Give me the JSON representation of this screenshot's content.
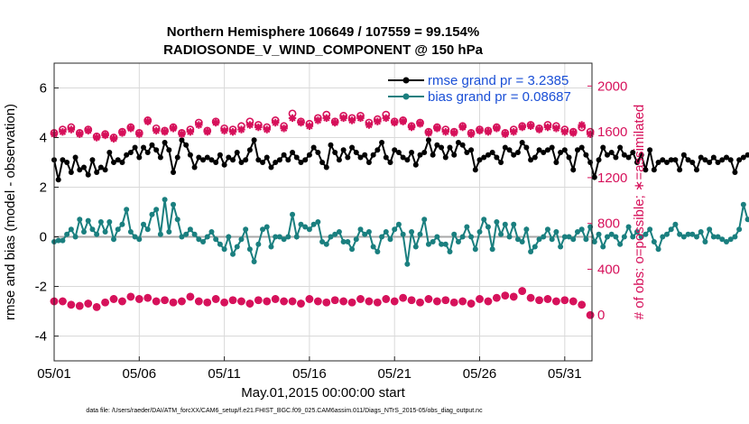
{
  "figure": {
    "title_line1": "Northern Hemisphere 106649 / 107559 = 99.154%",
    "title_line2": "RADIOSONDE_V_WIND_COMPONENT @ 150 hPa",
    "footer": "data file: /Users/raeder/DAI/ATM_forcXX/CAM6_setup/f.e21.FHIST_BGC.f09_025.CAM6assim.011/Diags_NTrS_2015-05/obs_diag_output.nc"
  },
  "chart_data": {
    "type": "line",
    "title": "Northern Hemisphere 106649 / 107559 = 99.154%  RADIOSONDE_V_WIND_COMPONENT @ 150 hPa",
    "xlabel": "May.01,2015 00:00:00 start",
    "ylabel_left": "rmse and bias (model - observation)",
    "ylabel_right": "# of obs: o=possible; ∗=assimilated",
    "xlim": [
      0,
      31.6
    ],
    "ylim_left": [
      -5,
      7
    ],
    "ylim_right": [
      -400,
      2200
    ],
    "x_tick_labels": [
      "05/01",
      "05/06",
      "05/11",
      "05/16",
      "05/21",
      "05/26",
      "05/31"
    ],
    "x_tick_values": [
      0,
      5,
      10,
      15,
      20,
      25,
      30
    ],
    "y_ticks_left": [
      -4,
      -2,
      0,
      2,
      4,
      6
    ],
    "y_ticks_right": [
      0,
      400,
      800,
      1200,
      1600,
      2000
    ],
    "grid": true,
    "zero_line": true,
    "legend_position": "top-right",
    "x_step_days": 0.25,
    "series": [
      {
        "name": "rmse grand pr = 3.2385",
        "axis": "left",
        "color": "#000000",
        "marker": "circle",
        "values": [
          3.1,
          2.3,
          3.1,
          3.0,
          2.6,
          3.2,
          2.7,
          2.8,
          2.5,
          3.1,
          2.6,
          2.8,
          2.7,
          3.4,
          3.0,
          3.1,
          3.0,
          3.3,
          3.4,
          3.6,
          3.2,
          3.6,
          3.4,
          3.7,
          3.5,
          3.2,
          3.8,
          3.5,
          2.6,
          3.2,
          3.9,
          3.7,
          3.3,
          2.8,
          3.2,
          3.1,
          3.2,
          3.1,
          3.0,
          3.3,
          2.9,
          3.2,
          3.1,
          3.4,
          3.0,
          3.1,
          3.5,
          3.9,
          3.1,
          3.0,
          3.2,
          2.8,
          3.0,
          3.1,
          3.3,
          3.1,
          3.4,
          3.2,
          3.0,
          3.1,
          3.3,
          3.6,
          3.4,
          3.0,
          2.8,
          3.7,
          3.4,
          3.1,
          3.5,
          3.2,
          3.6,
          3.4,
          3.2,
          3.3,
          3.0,
          3.3,
          3.5,
          3.8,
          3.2,
          3.0,
          3.5,
          3.4,
          3.2,
          3.1,
          3.4,
          2.9,
          3.3,
          3.4,
          3.9,
          3.3,
          3.7,
          3.6,
          3.2,
          3.6,
          3.3,
          3.8,
          3.7,
          3.4,
          3.5,
          2.7,
          3.1,
          3.2,
          3.3,
          3.4,
          3.2,
          3.0,
          3.6,
          3.5,
          3.3,
          3.4,
          3.8,
          3.6,
          3.1,
          3.2,
          3.5,
          3.4,
          3.5,
          3.6,
          3.0,
          3.4,
          3.5,
          3.2,
          2.7,
          3.5,
          3.6,
          3.3,
          3.0,
          2.4,
          3.1,
          3.6,
          3.3,
          3.4,
          3.2,
          3.6,
          3.3,
          3.2,
          3.4,
          3.0,
          3.3,
          2.7,
          3.5,
          2.7,
          3.0,
          3.1,
          3.0,
          3.1,
          3.1,
          2.7,
          3.3,
          3.1,
          3.0,
          2.7,
          3.2,
          3.1,
          3.0,
          3.2,
          3.0,
          3.1,
          3.2,
          3.1,
          2.6,
          3.1,
          3.2,
          3.3,
          3.2,
          3.3,
          3.2,
          3.1,
          3.0,
          2.4,
          2.5,
          3.0,
          3.3,
          2.5,
          3.5,
          3.0,
          2.9,
          3.3,
          2.6,
          3.2,
          3.1,
          2.8,
          2.9,
          3.3,
          2.5,
          3.0,
          3.1,
          3.0,
          2.8,
          3.2,
          3.3,
          3.2,
          3.1,
          3.3,
          2.8,
          3.3,
          3.2,
          3.1,
          3.1,
          2.6,
          2.5
        ]
      },
      {
        "name": "bias grand pr = 0.08687",
        "axis": "left",
        "color": "#1a7f7f",
        "marker": "circle",
        "values": [
          -0.2,
          -0.15,
          -0.15,
          0.1,
          0.3,
          0.0,
          0.7,
          0.2,
          0.65,
          0.3,
          0.1,
          0.6,
          0.2,
          0.6,
          -0.1,
          0.3,
          0.5,
          1.1,
          0.2,
          0.0,
          -0.1,
          0.5,
          0.3,
          0.9,
          1.1,
          0.1,
          1.5,
          0.2,
          1.3,
          0.7,
          0.0,
          0.1,
          0.3,
          0.1,
          -0.1,
          -0.2,
          0.0,
          0.2,
          -0.1,
          -0.3,
          -0.5,
          0.0,
          -0.7,
          -0.4,
          -0.1,
          0.3,
          -0.5,
          -1.0,
          -0.3,
          0.3,
          0.4,
          -0.4,
          0.0,
          0.0,
          -0.1,
          0.0,
          0.9,
          0.0,
          0.5,
          0.4,
          0.3,
          0.5,
          0.6,
          -0.2,
          -0.3,
          0.0,
          0.1,
          0.2,
          -0.2,
          -0.2,
          -0.5,
          -0.1,
          0.3,
          0.1,
          0.2,
          -0.4,
          -0.6,
          0.0,
          0.2,
          -0.1,
          0.3,
          0.5,
          0.1,
          -1.1,
          0.2,
          -0.4,
          0.1,
          0.7,
          -0.3,
          -0.2,
          0.0,
          -0.3,
          -0.3,
          -0.6,
          0.1,
          -0.2,
          0.0,
          0.4,
          0.0,
          -0.5,
          0.2,
          0.7,
          0.4,
          -0.5,
          0.6,
          0.1,
          0.5,
          0.0,
          0.5,
          -0.1,
          -0.2,
          0.3,
          -0.6,
          -0.4,
          -0.1,
          0.0,
          0.3,
          -0.1,
          0.2,
          -0.4,
          0.0,
          0.0,
          -0.1,
          0.2,
          0.3,
          -0.1,
          0.4,
          -0.2,
          0.1,
          -0.4,
          0.0,
          0.1,
          0.0,
          -0.3,
          0.0,
          0.4,
          0.0,
          0.2,
          0.0,
          0.1,
          0.3,
          -0.2,
          -0.5,
          0.0,
          0.1,
          0.3,
          0.5,
          0.1,
          0.0,
          0.1,
          0.1,
          0.0,
          0.2,
          -0.2,
          0.3,
          0.0,
          0.0,
          -0.1,
          -0.2,
          -0.1,
          0.0,
          0.3,
          1.3,
          0.7,
          0.5,
          0.8,
          0.4,
          0.6,
          -0.3,
          0.0,
          0.3,
          0.1,
          0.0,
          0.0,
          -0.1,
          0.1,
          0.0,
          -0.1,
          0.1,
          0.2,
          0.0,
          -0.1,
          0.0,
          -0.1,
          0.3,
          0.1,
          0.2,
          0.2,
          -0.3,
          0.2,
          0.0,
          0.0,
          0.1,
          0.5,
          1.3
        ]
      },
      {
        "name": "possible",
        "axis": "right",
        "color": "#d6105a",
        "marker": "o",
        "x": [
          0,
          0.5,
          1,
          1.5,
          2,
          2.5,
          3,
          3.5,
          4,
          4.5,
          5,
          5.5,
          6,
          6.5,
          7,
          7.5,
          8,
          8.5,
          9,
          9.5,
          10,
          10.5,
          11,
          11.5,
          12,
          12.5,
          13,
          13.5,
          14,
          14.5,
          15,
          15.5,
          16,
          16.5,
          17,
          17.5,
          18,
          18.5,
          19,
          19.5,
          20,
          20.5,
          21,
          21.5,
          22,
          22.5,
          23,
          23.5,
          24,
          24.5,
          25,
          25.5,
          26,
          26.5,
          27,
          27.5,
          28,
          28.5,
          29,
          29.5,
          30,
          30.5,
          31,
          31.5
        ],
        "values": [
          1590,
          1620,
          1640,
          1590,
          1620,
          1560,
          1580,
          1550,
          1600,
          1640,
          1590,
          1700,
          1630,
          1610,
          1640,
          1590,
          1620,
          1680,
          1610,
          1690,
          1630,
          1620,
          1650,
          1690,
          1660,
          1640,
          1700,
          1650,
          1760,
          1690,
          1670,
          1720,
          1750,
          1690,
          1740,
          1720,
          1740,
          1680,
          1710,
          1750,
          1690,
          1700,
          1650,
          1680,
          1600,
          1640,
          1620,
          1600,
          1650,
          1590,
          1620,
          1610,
          1640,
          1590,
          1620,
          1650,
          1660,
          1630,
          1660,
          1650,
          1620,
          1600,
          1640,
          1600
        ]
      },
      {
        "name": "assimilated",
        "axis": "right",
        "color": "#d6105a",
        "marker": "asterisk",
        "x": [
          0,
          0.5,
          1,
          1.5,
          2,
          2.5,
          3,
          3.5,
          4,
          4.5,
          5,
          5.5,
          6,
          6.5,
          7,
          7.5,
          8,
          8.5,
          9,
          9.5,
          10,
          10.5,
          11,
          11.5,
          12,
          12.5,
          13,
          13.5,
          14,
          14.5,
          15,
          15.5,
          16,
          16.5,
          17,
          17.5,
          18,
          18.5,
          19,
          19.5,
          20,
          20.5,
          21,
          21.5,
          22,
          22.5,
          23,
          23.5,
          24,
          24.5,
          25,
          25.5,
          26,
          26.5,
          27,
          27.5,
          28,
          28.5,
          29,
          29.5,
          30,
          30.5,
          31,
          31.5
        ],
        "values": [
          1580,
          1600,
          1620,
          1580,
          1610,
          1550,
          1570,
          1540,
          1590,
          1630,
          1580,
          1690,
          1610,
          1600,
          1630,
          1580,
          1600,
          1660,
          1600,
          1680,
          1610,
          1600,
          1620,
          1660,
          1640,
          1620,
          1680,
          1630,
          1720,
          1680,
          1650,
          1700,
          1720,
          1680,
          1720,
          1700,
          1720,
          1660,
          1690,
          1720,
          1680,
          1690,
          1640,
          1670,
          1590,
          1630,
          1600,
          1590,
          1640,
          1580,
          1610,
          1600,
          1630,
          1580,
          1600,
          1640,
          1650,
          1620,
          1640,
          1630,
          1600,
          1590,
          1660,
          1580
        ]
      },
      {
        "name": "possible (lower)",
        "axis": "right",
        "color": "#d6105a",
        "marker": "o",
        "x": [
          0,
          0.5,
          1,
          1.5,
          2,
          2.5,
          3,
          3.5,
          4,
          4.5,
          5,
          5.5,
          6,
          6.5,
          7,
          7.5,
          8,
          8.5,
          9,
          9.5,
          10,
          10.5,
          11,
          11.5,
          12,
          12.5,
          13,
          13.5,
          14,
          14.5,
          15,
          15.5,
          16,
          16.5,
          17,
          17.5,
          18,
          18.5,
          19,
          19.5,
          20,
          20.5,
          21,
          21.5,
          22,
          22.5,
          23,
          23.5,
          24,
          24.5,
          25,
          25.5,
          26,
          26.5,
          27,
          27.5,
          28,
          28.5,
          29,
          29.5,
          30,
          30.5,
          31,
          31.5
        ],
        "values": [
          120,
          120,
          90,
          80,
          100,
          70,
          110,
          140,
          120,
          160,
          140,
          150,
          120,
          130,
          110,
          120,
          160,
          120,
          110,
          140,
          110,
          130,
          120,
          100,
          130,
          120,
          140,
          120,
          120,
          100,
          140,
          120,
          110,
          130,
          120,
          110,
          140,
          120,
          110,
          140,
          120,
          150,
          130,
          110,
          140,
          120,
          130,
          110,
          120,
          100,
          140,
          120,
          150,
          170,
          160,
          210,
          150,
          130,
          140,
          120,
          130,
          120,
          90,
          0
        ]
      },
      {
        "name": "assimilated (lower)",
        "axis": "right",
        "color": "#d6105a",
        "marker": "asterisk",
        "x": [
          0,
          0.5,
          1,
          1.5,
          2,
          2.5,
          3,
          3.5,
          4,
          4.5,
          5,
          5.5,
          6,
          6.5,
          7,
          7.5,
          8,
          8.5,
          9,
          9.5,
          10,
          10.5,
          11,
          11.5,
          12,
          12.5,
          13,
          13.5,
          14,
          14.5,
          15,
          15.5,
          16,
          16.5,
          17,
          17.5,
          18,
          18.5,
          19,
          19.5,
          20,
          20.5,
          21,
          21.5,
          22,
          22.5,
          23,
          23.5,
          24,
          24.5,
          25,
          25.5,
          26,
          26.5,
          27,
          27.5,
          28,
          28.5,
          29,
          29.5,
          30,
          30.5,
          31,
          31.5
        ],
        "values": [
          120,
          120,
          90,
          80,
          100,
          70,
          110,
          140,
          120,
          160,
          140,
          150,
          120,
          130,
          110,
          120,
          160,
          120,
          110,
          140,
          110,
          130,
          120,
          100,
          130,
          120,
          140,
          120,
          120,
          100,
          140,
          120,
          110,
          130,
          120,
          110,
          140,
          120,
          110,
          140,
          120,
          150,
          130,
          110,
          140,
          120,
          130,
          110,
          120,
          100,
          140,
          120,
          150,
          170,
          160,
          210,
          150,
          130,
          140,
          120,
          130,
          120,
          90,
          0
        ]
      }
    ]
  }
}
